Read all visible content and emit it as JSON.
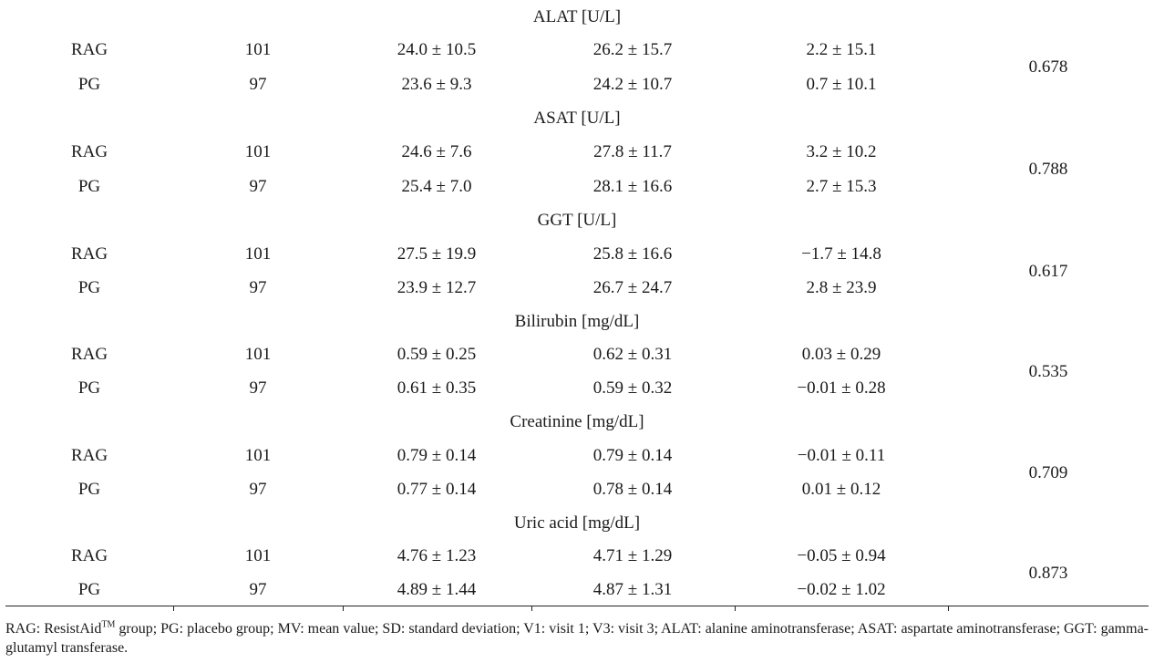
{
  "sections": [
    {
      "title": "ALAT [U/L]",
      "p_value": "0.678",
      "rows": [
        {
          "group": "RAG",
          "n": "101",
          "v1": "24.0 ± 10.5",
          "v3": "26.2 ± 15.7",
          "diff": "2.2 ± 15.1"
        },
        {
          "group": "PG",
          "n": "97",
          "v1": "23.6 ± 9.3",
          "v3": "24.2 ± 10.7",
          "diff": "0.7 ± 10.1"
        }
      ]
    },
    {
      "title": "ASAT [U/L]",
      "p_value": "0.788",
      "rows": [
        {
          "group": "RAG",
          "n": "101",
          "v1": "24.6 ± 7.6",
          "v3": "27.8 ± 11.7",
          "diff": "3.2 ± 10.2"
        },
        {
          "group": "PG",
          "n": "97",
          "v1": "25.4 ± 7.0",
          "v3": "28.1 ± 16.6",
          "diff": "2.7 ± 15.3"
        }
      ]
    },
    {
      "title": "GGT [U/L]",
      "p_value": "0.617",
      "rows": [
        {
          "group": "RAG",
          "n": "101",
          "v1": "27.5 ± 19.9",
          "v3": "25.8 ± 16.6",
          "diff": "−1.7 ± 14.8"
        },
        {
          "group": "PG",
          "n": "97",
          "v1": "23.9 ± 12.7",
          "v3": "26.7 ± 24.7",
          "diff": "2.8 ± 23.9"
        }
      ]
    },
    {
      "title": "Bilirubin [mg/dL]",
      "p_value": "0.535",
      "rows": [
        {
          "group": "RAG",
          "n": "101",
          "v1": "0.59 ± 0.25",
          "v3": "0.62 ± 0.31",
          "diff": "0.03 ± 0.29"
        },
        {
          "group": "PG",
          "n": "97",
          "v1": "0.61 ± 0.35",
          "v3": "0.59 ± 0.32",
          "diff": "−0.01 ± 0.28"
        }
      ]
    },
    {
      "title": "Creatinine [mg/dL]",
      "p_value": "0.709",
      "rows": [
        {
          "group": "RAG",
          "n": "101",
          "v1": "0.79 ± 0.14",
          "v3": "0.79 ± 0.14",
          "diff": "−0.01 ± 0.11"
        },
        {
          "group": "PG",
          "n": "97",
          "v1": "0.77 ± 0.14",
          "v3": "0.78 ± 0.14",
          "diff": "0.01 ± 0.12"
        }
      ]
    },
    {
      "title": "Uric acid [mg/dL]",
      "p_value": "0.873",
      "rows": [
        {
          "group": "RAG",
          "n": "101",
          "v1": "4.76 ± 1.23",
          "v3": "4.71 ± 1.29",
          "diff": "−0.05 ± 0.94"
        },
        {
          "group": "PG",
          "n": "97",
          "v1": "4.89 ± 1.44",
          "v3": "4.87 ± 1.31",
          "diff": "−0.02 ± 1.02"
        }
      ]
    }
  ],
  "footnote": {
    "part1": "RAG: ResistAid",
    "tm": "TM",
    "part2": " group; PG: placebo group; MV: mean value; SD: standard deviation; V1: visit 1; V3: visit 3; ALAT: alanine aminotransferase; ASAT: aspartate aminotransferase; GGT: gamma-glutamyl transferase."
  }
}
